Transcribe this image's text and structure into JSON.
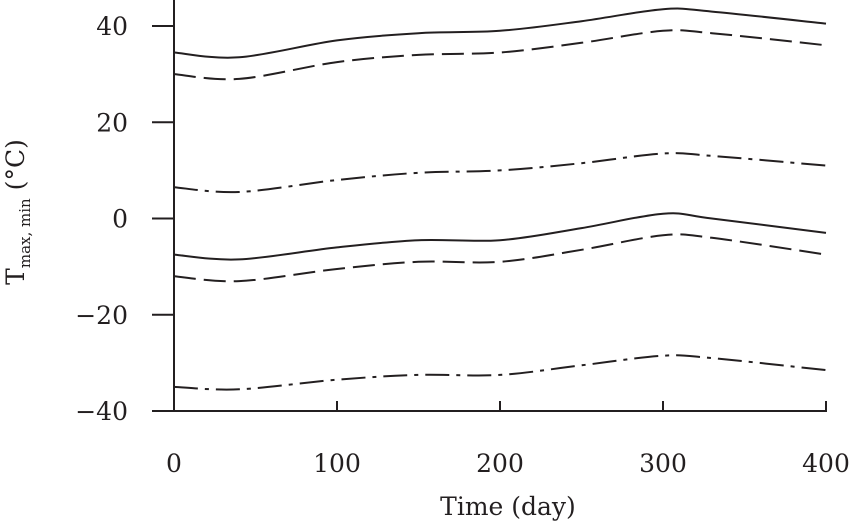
{
  "chart_data": {
    "type": "line",
    "xlabel": "Time (day)",
    "ylabel": {
      "main": "T",
      "subscript": "max, min",
      "unit": "(°C)"
    },
    "xlim": [
      0,
      400
    ],
    "ylim": [
      -40,
      45
    ],
    "xticks": [
      0,
      100,
      200,
      300,
      400
    ],
    "yticks": [
      -40,
      -20,
      0,
      20,
      40
    ],
    "xtick_labels": [
      "0",
      "100",
      "200",
      "300",
      "400"
    ],
    "ytick_labels": [
      "−40",
      "−20",
      "0",
      "20",
      "40"
    ],
    "grid": false,
    "legend": null,
    "x": [
      0,
      40,
      100,
      150,
      200,
      250,
      300,
      330,
      400
    ],
    "series": [
      {
        "style": "solid",
        "values": [
          34.5,
          33.5,
          37,
          38.5,
          39,
          41,
          43.5,
          43,
          40.5
        ]
      },
      {
        "style": "dashed",
        "values": [
          30,
          29,
          32.5,
          34,
          34.5,
          36.5,
          39,
          38.5,
          36
        ]
      },
      {
        "style": "dashdot",
        "values": [
          6.5,
          5.5,
          8,
          9.5,
          10,
          11.5,
          13.5,
          13,
          11
        ]
      },
      {
        "style": "solid",
        "values": [
          -7.5,
          -8.5,
          -6,
          -4.5,
          -4.5,
          -2,
          1,
          0,
          -3
        ]
      },
      {
        "style": "dashed",
        "values": [
          -12,
          -13,
          -10.5,
          -9,
          -9,
          -6.5,
          -3.5,
          -4,
          -7.5
        ]
      },
      {
        "style": "dashdot",
        "values": [
          -35,
          -35.5,
          -33.5,
          -32.5,
          -32.5,
          -30.5,
          -28.5,
          -29,
          -31.5
        ]
      }
    ]
  }
}
